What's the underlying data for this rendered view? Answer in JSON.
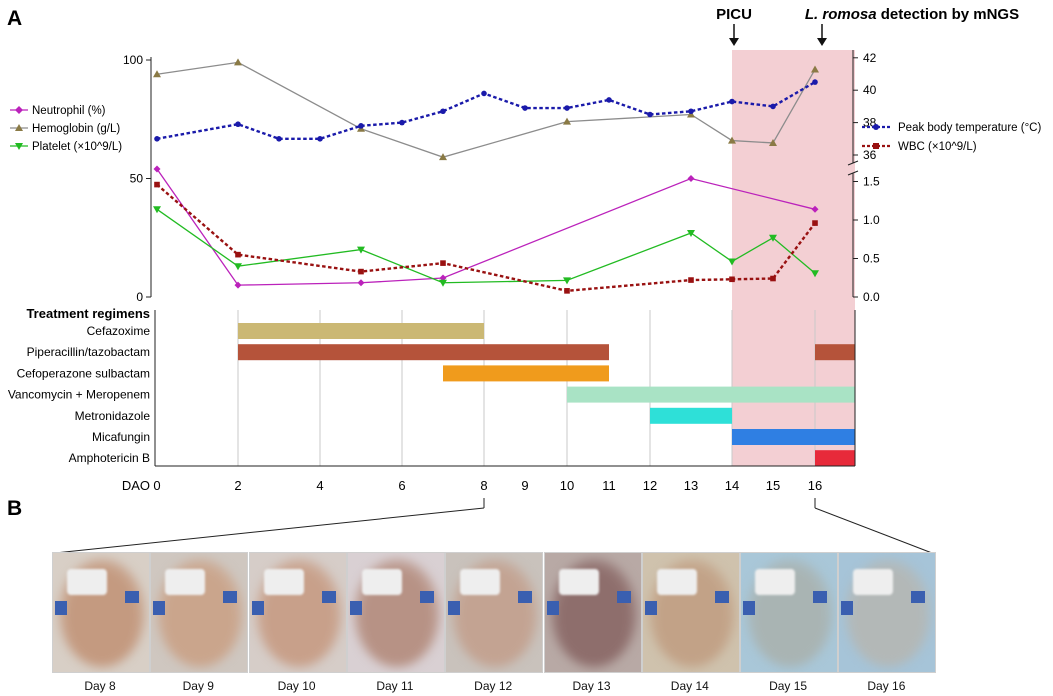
{
  "panel_labels": {
    "a": "A",
    "b": "B"
  },
  "annotations": {
    "picu": "PICU",
    "detection_italic": "L. romosa",
    "detection_rest": " detection by mNGS"
  },
  "chart_data": {
    "type": "line",
    "x_axis": {
      "prefix": "DAO",
      "ticks": [
        0,
        2,
        4,
        6,
        8,
        9,
        10,
        11,
        12,
        13,
        14,
        15,
        16
      ]
    },
    "left_axis": {
      "ticks": [
        0,
        50,
        100
      ],
      "range": [
        0,
        100
      ]
    },
    "right_upper_axis": {
      "ticks": [
        36,
        38,
        40,
        42
      ],
      "range": [
        35,
        42.5
      ]
    },
    "right_lower_axis": {
      "ticks": [
        "0.0",
        "0.5",
        "1.0",
        "1.5"
      ],
      "range": [
        0,
        1.6
      ]
    },
    "picu_shading": {
      "from_x": 14,
      "to_x": 17.7
    },
    "legend_left": [
      "Neutrophil (%)",
      "Hemoglobin (g/L)",
      "Platelet (×10^9/L)"
    ],
    "legend_right": [
      "Peak body temperature (°C)",
      "WBC (×10^9/L)"
    ],
    "series": [
      {
        "name": "Neutrophil (%)",
        "axis": "left",
        "color": "#bb22bb",
        "marker": "diamond",
        "dash": false,
        "x": [
          0,
          2,
          5,
          7,
          13,
          16
        ],
        "y": [
          54,
          5,
          6,
          8,
          50,
          37
        ]
      },
      {
        "name": "Hemoglobin (g/L)",
        "axis": "left",
        "color": "#8a7a45",
        "line_color": "#8c8c8c",
        "marker": "triangle-up",
        "dash": false,
        "x": [
          0,
          2,
          5,
          7,
          10,
          13,
          14,
          15,
          16
        ],
        "y": [
          94,
          99,
          71,
          59,
          74,
          77,
          66,
          65,
          96
        ]
      },
      {
        "name": "Platelet (×10^9/L)",
        "axis": "left",
        "color": "#22bb22",
        "marker": "triangle-down",
        "dash": false,
        "x": [
          0,
          2,
          5,
          7,
          10,
          13,
          14,
          15,
          16
        ],
        "y": [
          37,
          13,
          20,
          6,
          7,
          27,
          15,
          25,
          10
        ]
      },
      {
        "name": "Peak body temperature (°C)",
        "axis": "right_upper",
        "color": "#1a1aaa",
        "marker": "circle",
        "dash": true,
        "x": [
          0,
          2,
          3,
          4,
          5,
          6,
          7,
          8,
          9,
          10,
          11,
          12,
          13,
          14,
          15,
          16
        ],
        "y": [
          37.0,
          37.9,
          37.0,
          37.0,
          37.8,
          38.0,
          38.7,
          39.8,
          38.9,
          38.9,
          39.4,
          38.5,
          38.7,
          39.3,
          39.0,
          40.5
        ]
      },
      {
        "name": "WBC (×10^9/L)",
        "axis": "right_lower",
        "color": "#991111",
        "marker": "square",
        "dash": true,
        "x": [
          0,
          2,
          5,
          7,
          10,
          13,
          14,
          15,
          16
        ],
        "y": [
          1.46,
          0.55,
          0.33,
          0.44,
          0.08,
          0.22,
          0.23,
          0.24,
          0.96
        ]
      }
    ],
    "treatment": {
      "title": "Treatment regimens",
      "rows": [
        {
          "label": "Cefazoxime",
          "bars": [
            {
              "from": 2,
              "to": 8
            }
          ],
          "color": "#cbb874"
        },
        {
          "label": "Piperacillin/tazobactam",
          "bars": [
            {
              "from": 2,
              "to": 11
            },
            {
              "from": 16,
              "to": 17
            }
          ],
          "color": "#b5533a"
        },
        {
          "label": "Cefoperazone sulbactam",
          "bars": [
            {
              "from": 7,
              "to": 11
            }
          ],
          "color": "#f09b1c"
        },
        {
          "label": "Vancomycin + Meropenem",
          "bars": [
            {
              "from": 10,
              "to": 17
            }
          ],
          "color": "#a9e3c5"
        },
        {
          "label": "Metronidazole",
          "bars": [
            {
              "from": 12,
              "to": 14
            }
          ],
          "color": "#2ee0d8"
        },
        {
          "label": "Micafungin",
          "bars": [
            {
              "from": 14,
              "to": 17
            }
          ],
          "color": "#2f7fe3"
        },
        {
          "label": "Amphotericin B",
          "bars": [
            {
              "from": 16,
              "to": 17
            }
          ],
          "color": "#e72a3a"
        }
      ]
    }
  },
  "photos": [
    {
      "label": "Day 8",
      "bg": "#d8cfc6",
      "skin": "#c49a80"
    },
    {
      "label": "Day 9",
      "bg": "#cfc7c0",
      "skin": "#caa58c"
    },
    {
      "label": "Day 10",
      "bg": "#d6cdc8",
      "skin": "#c8a08a"
    },
    {
      "label": "Day 11",
      "bg": "#d9d0d3",
      "skin": "#b79285"
    },
    {
      "label": "Day 12",
      "bg": "#c9c2bc",
      "skin": "#c3a392"
    },
    {
      "label": "Day 13",
      "bg": "#b8a9a5",
      "skin": "#8e6e6c"
    },
    {
      "label": "Day 14",
      "bg": "#cfc2ad",
      "skin": "#c2a287"
    },
    {
      "label": "Day 15",
      "bg": "#a9c7d8",
      "skin": "#a9b4b3"
    },
    {
      "label": "Day 16",
      "bg": "#a6c4d8",
      "skin": "#b3b8b7"
    }
  ]
}
